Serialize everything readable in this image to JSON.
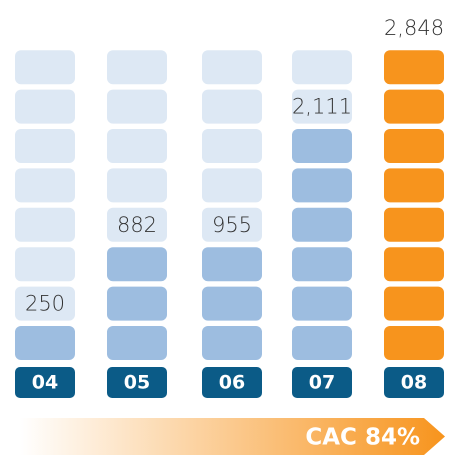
{
  "chart_data": {
    "type": "pictogram",
    "categories": [
      "04",
      "05",
      "06",
      "07",
      "08"
    ],
    "values": [
      250,
      882,
      955,
      2111,
      2848
    ],
    "value_labels": [
      "250",
      "882",
      "955",
      "2,111",
      "2,848"
    ],
    "blocks": 8,
    "colors": [
      "#9dbde0",
      "#9dbde0",
      "#9dbde0",
      "#9dbde0",
      "#f7941d"
    ],
    "empty_color": "#dde8f4",
    "category_color": "#0b5b87",
    "annotation": "CAC 84%",
    "annotation_color": "#f7941d"
  }
}
